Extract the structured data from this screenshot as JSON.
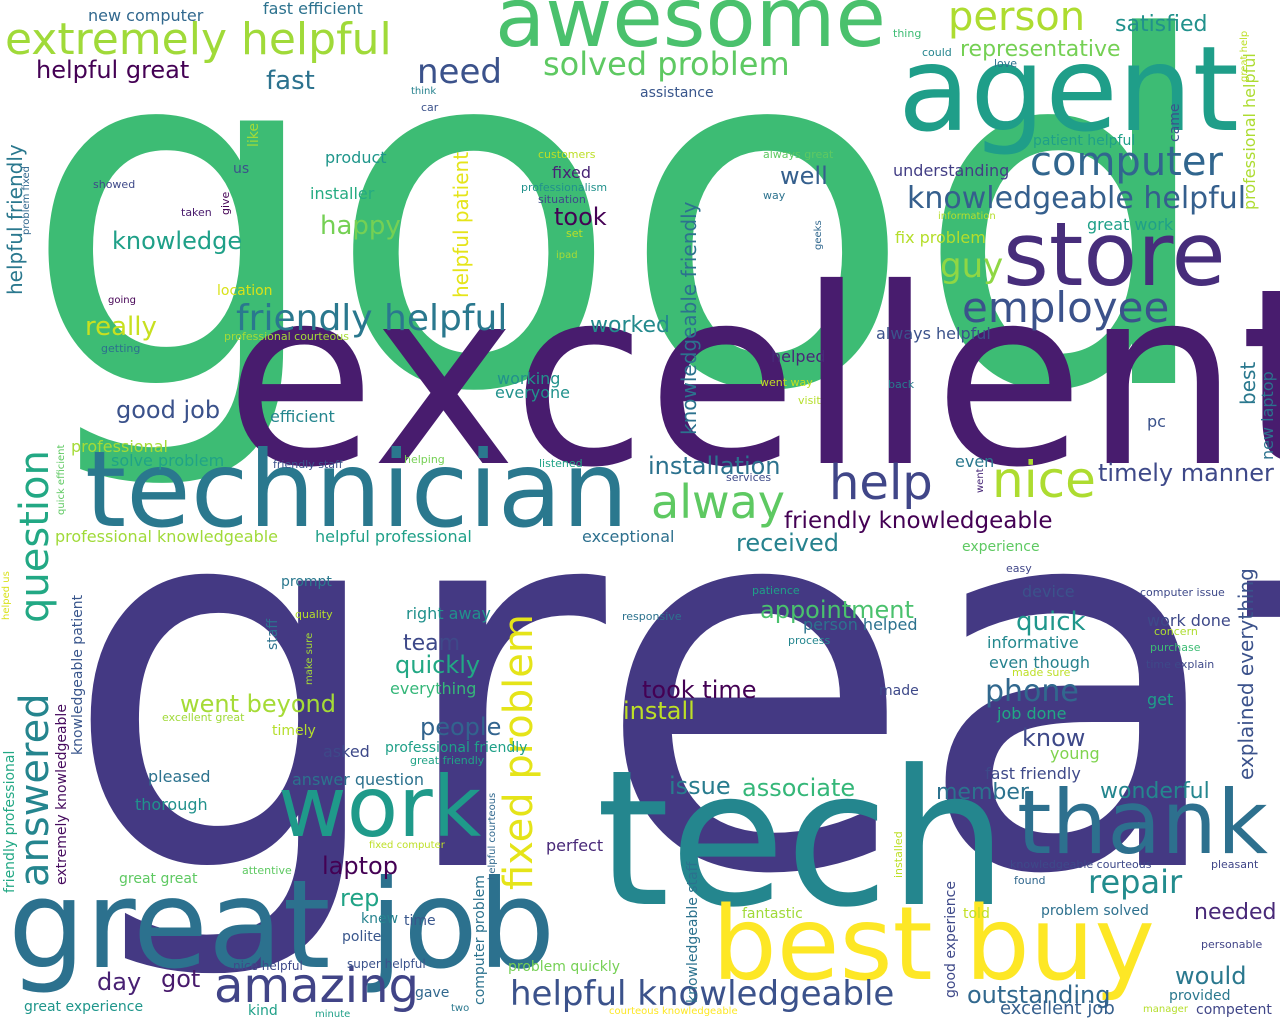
{
  "words": [
    {
      "text": "great",
      "color": "#443983"
    },
    {
      "text": "good",
      "color": "#3dbc74"
    },
    {
      "text": "excellent",
      "color": "#481c6e"
    },
    {
      "text": "tech",
      "color": "#24868e"
    },
    {
      "text": "technician",
      "color": "#2a788e"
    },
    {
      "text": "great job",
      "color": "#2c718e"
    },
    {
      "text": "agent",
      "color": "#1f9e89"
    },
    {
      "text": "awesome",
      "color": "#4ac16d"
    },
    {
      "text": "best buy",
      "color": "#fde725"
    },
    {
      "text": "store",
      "color": "#472d7b"
    },
    {
      "text": "work",
      "color": "#1f9a8a"
    },
    {
      "text": "thank",
      "color": "#2d708e"
    },
    {
      "text": "extremely helpful",
      "color": "#a0da39"
    },
    {
      "text": "computer",
      "color": "#31668e"
    },
    {
      "text": "employee",
      "color": "#3b528b"
    },
    {
      "text": "fixed problem",
      "color": "#e5e419"
    },
    {
      "text": "amazing",
      "color": "#414487"
    },
    {
      "text": "question",
      "color": "#22a884"
    },
    {
      "text": "answered",
      "color": "#25858e"
    },
    {
      "text": "alway",
      "color": "#5ec962"
    },
    {
      "text": "help",
      "color": "#404688"
    },
    {
      "text": "nice",
      "color": "#addc30"
    },
    {
      "text": "friendly helpful",
      "color": "#2a788e"
    },
    {
      "text": "helpful knowledgeable",
      "color": "#3b528b"
    },
    {
      "text": "person",
      "color": "#addc30"
    },
    {
      "text": "solved problem",
      "color": "#5ec962"
    },
    {
      "text": "knowledgeable helpful",
      "color": "#355f8d"
    },
    {
      "text": "need",
      "color": "#3b528b"
    },
    {
      "text": "repair",
      "color": "#228c8d"
    },
    {
      "text": "helpful great",
      "color": "#440154"
    },
    {
      "text": "fast",
      "color": "#2c728e"
    },
    {
      "text": "happy",
      "color": "#75d054"
    },
    {
      "text": "knowledge",
      "color": "#1fa088"
    },
    {
      "text": "guy",
      "color": "#8fd744"
    },
    {
      "text": "really",
      "color": "#c8e020"
    },
    {
      "text": "good job",
      "color": "#3b528b"
    },
    {
      "text": "took",
      "color": "#440154"
    },
    {
      "text": "well",
      "color": "#355f8d"
    },
    {
      "text": "worked",
      "color": "#238a8d"
    },
    {
      "text": "installation",
      "color": "#2c728e"
    },
    {
      "text": "timely manner",
      "color": "#3e4989"
    },
    {
      "text": "friendly knowledgeable",
      "color": "#440154"
    },
    {
      "text": "received",
      "color": "#26828e"
    },
    {
      "text": "appointment",
      "color": "#4ac16d"
    },
    {
      "text": "quick",
      "color": "#1f968b"
    },
    {
      "text": "phone",
      "color": "#31688e"
    },
    {
      "text": "went beyond",
      "color": "#a5db36"
    },
    {
      "text": "took time",
      "color": "#440154"
    },
    {
      "text": "install",
      "color": "#bddf26"
    },
    {
      "text": "quickly",
      "color": "#22a884"
    },
    {
      "text": "team",
      "color": "#3e4989"
    },
    {
      "text": "people",
      "color": "#32648e"
    },
    {
      "text": "associate",
      "color": "#35b779"
    },
    {
      "text": "issue",
      "color": "#287c8e"
    },
    {
      "text": "member",
      "color": "#2c728e"
    },
    {
      "text": "wonderful",
      "color": "#24868e"
    },
    {
      "text": "laptop",
      "color": "#440154"
    },
    {
      "text": "know",
      "color": "#3e4989"
    },
    {
      "text": "rep",
      "color": "#20a386"
    },
    {
      "text": "got",
      "color": "#481a6c"
    },
    {
      "text": "day",
      "color": "#482173"
    },
    {
      "text": "outstanding",
      "color": "#31688e"
    },
    {
      "text": "would",
      "color": "#2a788e"
    },
    {
      "text": "needed",
      "color": "#482878"
    },
    {
      "text": "excellent job",
      "color": "#355f8d"
    },
    {
      "text": "explained everything",
      "color": "#3b528b"
    },
    {
      "text": "knowledgeable friendly",
      "color": "#2c728e"
    },
    {
      "text": "helpful patient",
      "color": "#e5e419"
    },
    {
      "text": "helpful friendly",
      "color": "#2a788e"
    },
    {
      "text": "satisfied",
      "color": "#21918c"
    },
    {
      "text": "representative",
      "color": "#75d054"
    },
    {
      "text": "fast efficient",
      "color": "#2c728e"
    },
    {
      "text": "new computer",
      "color": "#31688e"
    },
    {
      "text": "understanding",
      "color": "#433e85"
    },
    {
      "text": "fix problem",
      "color": "#b5de2b"
    },
    {
      "text": "great work",
      "color": "#1fa088"
    },
    {
      "text": "always helpful",
      "color": "#3b528b"
    },
    {
      "text": "best",
      "color": "#2a788e"
    },
    {
      "text": "pc",
      "color": "#3b528b"
    },
    {
      "text": "new laptop",
      "color": "#2c728e"
    },
    {
      "text": "even",
      "color": "#2a788e"
    },
    {
      "text": "helped",
      "color": "#482878"
    },
    {
      "text": "working",
      "color": "#21918c"
    },
    {
      "text": "everyone",
      "color": "#21918c"
    },
    {
      "text": "efficient",
      "color": "#24868e"
    },
    {
      "text": "professional",
      "color": "#a5db36"
    },
    {
      "text": "solve problem",
      "color": "#20a386"
    },
    {
      "text": "professional knowledgeable",
      "color": "#a0da39"
    },
    {
      "text": "helpful professional",
      "color": "#1fa088"
    },
    {
      "text": "exceptional",
      "color": "#2d708e"
    },
    {
      "text": "installer",
      "color": "#25ab82"
    },
    {
      "text": "product",
      "color": "#1f968b"
    },
    {
      "text": "fixed",
      "color": "#482475"
    },
    {
      "text": "assistance",
      "color": "#39568c"
    },
    {
      "text": "us",
      "color": "#3b528b"
    },
    {
      "text": "like",
      "color": "#a0da39"
    },
    {
      "text": "location",
      "color": "#d8e219"
    },
    {
      "text": "prompt",
      "color": "#2a788e"
    },
    {
      "text": "staff",
      "color": "#2c728e"
    },
    {
      "text": "right away",
      "color": "#21918c"
    },
    {
      "text": "person helped",
      "color": "#2c728e"
    },
    {
      "text": "informative",
      "color": "#23888e"
    },
    {
      "text": "even though",
      "color": "#26828e"
    },
    {
      "text": "work done",
      "color": "#3e4989"
    },
    {
      "text": "device",
      "color": "#3b528b"
    },
    {
      "text": "experience",
      "color": "#5ec962"
    },
    {
      "text": "made",
      "color": "#3e4989"
    },
    {
      "text": "job done",
      "color": "#22a884"
    },
    {
      "text": "get",
      "color": "#1f9e89"
    },
    {
      "text": "young",
      "color": "#7fd34e"
    },
    {
      "text": "fast friendly",
      "color": "#3e4989"
    },
    {
      "text": "asked",
      "color": "#3e4989"
    },
    {
      "text": "timely",
      "color": "#b5de2b"
    },
    {
      "text": "professional friendly",
      "color": "#1fa088"
    },
    {
      "text": "pleased",
      "color": "#2c728e"
    },
    {
      "text": "answer question",
      "color": "#2c728e"
    },
    {
      "text": "thorough",
      "color": "#21918c"
    },
    {
      "text": "everything",
      "color": "#35b779"
    },
    {
      "text": "knew",
      "color": "#26828e"
    },
    {
      "text": "time",
      "color": "#39568c"
    },
    {
      "text": "polite",
      "color": "#39568c"
    },
    {
      "text": "perfect",
      "color": "#482878"
    },
    {
      "text": "fantastic",
      "color": "#a0da39"
    },
    {
      "text": "told",
      "color": "#c2df23"
    },
    {
      "text": "problem solved",
      "color": "#2d708e"
    },
    {
      "text": "provided",
      "color": "#2a788e"
    },
    {
      "text": "competent",
      "color": "#404688"
    },
    {
      "text": "gave",
      "color": "#31688e"
    },
    {
      "text": "kind",
      "color": "#1fa088"
    },
    {
      "text": "problem quickly",
      "color": "#75d054"
    },
    {
      "text": "great experience",
      "color": "#1f968b"
    },
    {
      "text": "great great",
      "color": "#5ec962"
    },
    {
      "text": "nice helpful",
      "color": "#3e4989"
    },
    {
      "text": "super helpful",
      "color": "#3b528b"
    },
    {
      "text": "computer problem",
      "color": "#2c728e"
    },
    {
      "text": "knowledgeable staff",
      "color": "#2c728e"
    },
    {
      "text": "good experience",
      "color": "#3e4989"
    },
    {
      "text": "extremely knowledgeable",
      "color": "#460b5e"
    },
    {
      "text": "friendly professional",
      "color": "#22a884"
    },
    {
      "text": "knowledgeable patient",
      "color": "#39568c"
    },
    {
      "text": "thing",
      "color": "#3dbc74"
    },
    {
      "text": "could",
      "color": "#25858e"
    },
    {
      "text": "love",
      "color": "#2c728e"
    },
    {
      "text": "great help",
      "color": "#bddf26"
    },
    {
      "text": "professional helpful",
      "color": "#addc30"
    },
    {
      "text": "came",
      "color": "#3b528b"
    },
    {
      "text": "patient helpful",
      "color": "#1fa088"
    },
    {
      "text": "always great",
      "color": "#5ec962"
    },
    {
      "text": "way",
      "color": "#2c728e"
    },
    {
      "text": "geeks",
      "color": "#31688e"
    },
    {
      "text": "information",
      "color": "#b5de2b"
    },
    {
      "text": "think",
      "color": "#26828e"
    },
    {
      "text": "car",
      "color": "#3b528b"
    },
    {
      "text": "customers",
      "color": "#bddf26"
    },
    {
      "text": "professionalism",
      "color": "#21918c"
    },
    {
      "text": "situation",
      "color": "#3e4989"
    },
    {
      "text": "set",
      "color": "#bddf26"
    },
    {
      "text": "ipad",
      "color": "#a5db36"
    },
    {
      "text": "showed",
      "color": "#3e4989"
    },
    {
      "text": "give",
      "color": "#440154"
    },
    {
      "text": "taken",
      "color": "#481a6c"
    },
    {
      "text": "problem fixed",
      "color": "#31688e"
    },
    {
      "text": "going",
      "color": "#440154"
    },
    {
      "text": "getting",
      "color": "#2d708e"
    },
    {
      "text": "professional courteous",
      "color": "#a5db36"
    },
    {
      "text": "friendly staff",
      "color": "#3b528b"
    },
    {
      "text": "helping",
      "color": "#75d054"
    },
    {
      "text": "listened",
      "color": "#20a386"
    },
    {
      "text": "services",
      "color": "#3e4989"
    },
    {
      "text": "went way",
      "color": "#c2df23"
    },
    {
      "text": "visit",
      "color": "#b5de2b"
    },
    {
      "text": "back",
      "color": "#287c8e"
    },
    {
      "text": "went",
      "color": "#482878"
    },
    {
      "text": "quick efficient",
      "color": "#5ec962"
    },
    {
      "text": "helped us",
      "color": "#d8e219"
    },
    {
      "text": "quality",
      "color": "#b5de2b"
    },
    {
      "text": "make sure",
      "color": "#a5db36"
    },
    {
      "text": "responsive",
      "color": "#2c728e"
    },
    {
      "text": "patience",
      "color": "#1fa088"
    },
    {
      "text": "process",
      "color": "#24868e"
    },
    {
      "text": "easy",
      "color": "#404688"
    },
    {
      "text": "computer issue",
      "color": "#3e4989"
    },
    {
      "text": "concern",
      "color": "#addc30"
    },
    {
      "text": "purchase",
      "color": "#3dbc74"
    },
    {
      "text": "time explain",
      "color": "#3e4989"
    },
    {
      "text": "made sure",
      "color": "#bddf26"
    },
    {
      "text": "knowledgeable courteous",
      "color": "#3e4989"
    },
    {
      "text": "pleasant",
      "color": "#404688"
    },
    {
      "text": "found",
      "color": "#31688e"
    },
    {
      "text": "personable",
      "color": "#414487"
    },
    {
      "text": "manager",
      "color": "#b5de2b"
    },
    {
      "text": "courteous knowledgeable",
      "color": "#fde725"
    },
    {
      "text": "two",
      "color": "#2a788e"
    },
    {
      "text": "minute",
      "color": "#1fa088"
    },
    {
      "text": "fixed computer",
      "color": "#bddf26"
    },
    {
      "text": "helpful courteous",
      "color": "#31688e"
    },
    {
      "text": "great friendly",
      "color": "#20a386"
    },
    {
      "text": "excellent great",
      "color": "#a0da39"
    },
    {
      "text": "attentive",
      "color": "#5ec962"
    },
    {
      "text": "installed",
      "color": "#bddf26"
    }
  ]
}
